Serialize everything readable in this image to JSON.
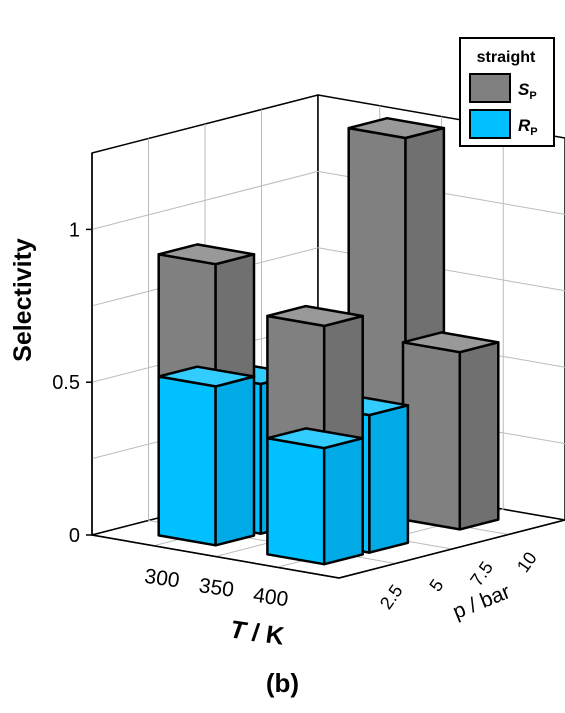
{
  "caption": "(b)",
  "chart_data": {
    "type": "bar3d",
    "zlabel": "Selectivity",
    "xlabel_main": "T",
    "xlabel_unit": " / K",
    "ylabel": "p / bar",
    "x_ticks": [
      "300",
      "350",
      "400"
    ],
    "y_ticks": [
      "2.5",
      "5",
      "7.5",
      "10"
    ],
    "z_ticks": [
      "0",
      "0.5",
      "1"
    ],
    "zlim": [
      0,
      1.25
    ],
    "legend": {
      "title": "straight",
      "position": "top-right",
      "entries": [
        {
          "base": "S",
          "sub": "P",
          "color": "#808080"
        },
        {
          "base": "R",
          "sub": "P",
          "color": "#00c0ff"
        }
      ]
    },
    "bars": [
      {
        "T": "300",
        "p": "2.5",
        "series": "S_P",
        "value": 0.92
      },
      {
        "T": "300",
        "p": "2.5",
        "series": "R_P",
        "value": 0.52
      },
      {
        "T": "300",
        "p": "5",
        "series": "R_P",
        "value": 0.49
      },
      {
        "T": "350",
        "p": "10",
        "series": "S_P",
        "value": 1.25
      },
      {
        "T": "400",
        "p": "2.5",
        "series": "S_P",
        "value": 0.78
      },
      {
        "T": "400",
        "p": "2.5",
        "series": "R_P",
        "value": 0.38
      },
      {
        "T": "400",
        "p": "5",
        "series": "R_P",
        "value": 0.45
      },
      {
        "T": "400",
        "p": "10",
        "series": "S_P",
        "value": 0.58
      }
    ]
  }
}
